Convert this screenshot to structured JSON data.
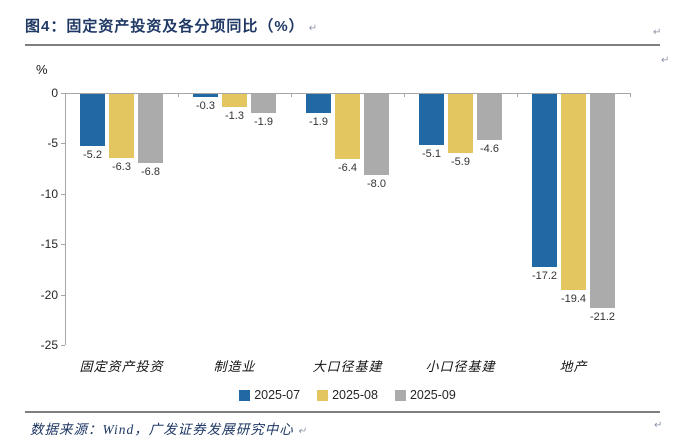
{
  "page": {
    "title": "图4：固定资产投资及各分项同比（%）",
    "source_note": "数据来源：Wind，广发证券发展研究中心",
    "return_mark": "↵"
  },
  "chart_data": {
    "type": "bar",
    "title": "固定资产投资及各分项同比（%）",
    "unit_label": "%",
    "categories": [
      "固定资产投资",
      "制造业",
      "大口径基建",
      "小口径基建",
      "地产"
    ],
    "series": [
      {
        "name": "2025-07",
        "color": "#2069A4",
        "values": [
          -5.2,
          -0.3,
          -1.9,
          -5.1,
          -17.2
        ]
      },
      {
        "name": "2025-08",
        "color": "#E3C660",
        "values": [
          -6.3,
          -1.3,
          -6.4,
          -5.9,
          -19.4
        ]
      },
      {
        "name": "2025-09",
        "color": "#ABABAB",
        "values": [
          -6.8,
          -1.9,
          -8.0,
          -4.6,
          -21.2
        ]
      }
    ],
    "y_ticks": [
      0,
      -5,
      -10,
      -15,
      -20,
      -25
    ],
    "ylim": [
      -25,
      0
    ],
    "xlabel": "",
    "ylabel": "%",
    "grid": false,
    "legend_position": "bottom",
    "data_labels": true,
    "axis_color": "#A6A6A6"
  }
}
